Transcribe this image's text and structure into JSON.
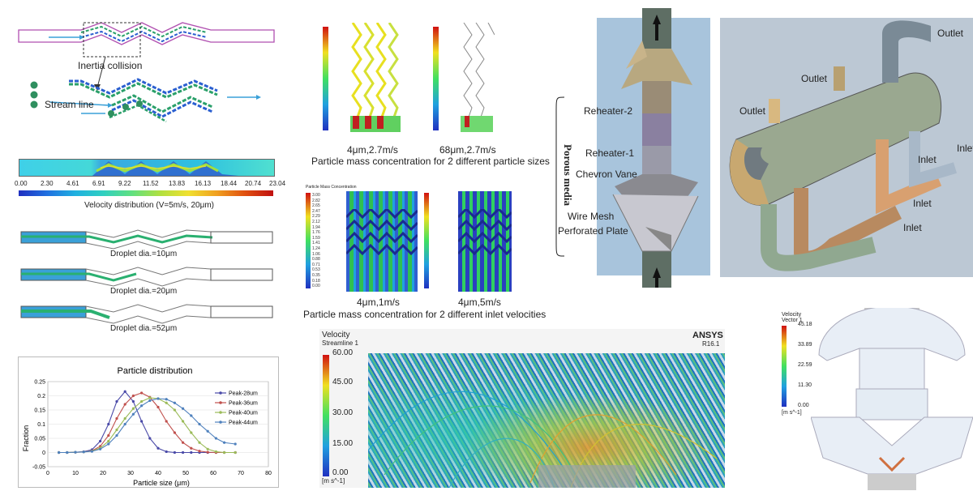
{
  "panel_a": {
    "inertia_label": "Inertia collision",
    "stream_label": "Stream line",
    "velocity_caption": "Velocity distribution (V=5m/s, 20μm)",
    "velocity_ticks": [
      "0.00",
      "2.30",
      "4.61",
      "6.91",
      "9.22",
      "11.52",
      "13.83",
      "16.13",
      "18.44",
      "20.74",
      "23.04"
    ],
    "droplet_captions": [
      "Droplet dia.=10μm",
      "Droplet dia.=20μm",
      "Droplet dia.=52μm"
    ]
  },
  "chart_data": {
    "type": "line",
    "title": "Particle distribution",
    "xlabel": "Particle size (μm)",
    "ylabel": "Fraction",
    "xlim": [
      0,
      80
    ],
    "ylim": [
      -0.05,
      0.25
    ],
    "xticks": [
      0,
      10,
      20,
      30,
      40,
      50,
      60,
      70,
      80
    ],
    "yticks": [
      -0.05,
      0,
      0.05,
      0.1,
      0.15,
      0.2,
      0.25
    ],
    "legend_position": "top-right",
    "x": [
      4,
      7,
      10,
      13,
      16,
      19,
      22,
      25,
      28,
      31,
      34,
      37,
      40,
      43,
      46,
      49,
      52,
      55,
      58,
      61,
      64,
      68
    ],
    "series": [
      {
        "name": "Peak-28um",
        "color": "#4a4aa8",
        "values": [
          0,
          0,
          0.001,
          0.003,
          0.01,
          0.04,
          0.1,
          0.18,
          0.215,
          0.18,
          0.11,
          0.05,
          0.015,
          0.003,
          0,
          0,
          0,
          0,
          0,
          0,
          0,
          0
        ]
      },
      {
        "name": "Peak-36um",
        "color": "#c0504d",
        "values": [
          0,
          0,
          0.001,
          0.002,
          0.006,
          0.022,
          0.06,
          0.12,
          0.17,
          0.2,
          0.21,
          0.195,
          0.16,
          0.11,
          0.07,
          0.035,
          0.015,
          0.005,
          0.001,
          0,
          0,
          0
        ]
      },
      {
        "name": "Peak-40um",
        "color": "#9bbb59",
        "values": [
          0,
          0,
          0.001,
          0.002,
          0.005,
          0.016,
          0.04,
          0.08,
          0.12,
          0.155,
          0.18,
          0.193,
          0.19,
          0.175,
          0.15,
          0.11,
          0.07,
          0.035,
          0.012,
          0.003,
          0,
          0
        ]
      },
      {
        "name": "Peak-44um",
        "color": "#4f81bd",
        "values": [
          0,
          0,
          0.001,
          0.002,
          0.004,
          0.012,
          0.03,
          0.06,
          0.1,
          0.135,
          0.165,
          0.183,
          0.19,
          0.188,
          0.175,
          0.155,
          0.13,
          0.1,
          0.075,
          0.05,
          0.035,
          0.03
        ]
      }
    ]
  },
  "panel_b": {
    "top_caption_labels": [
      "4μm,2.7m/s",
      "68μm,2.7m/s"
    ],
    "top_caption": "Particle mass concentration for 2 different particle sizes",
    "colorbar_title": "Particle Mass Concentration",
    "colorbar_ticks": [
      "3.00",
      "2.82",
      "2.65",
      "2.47",
      "2.29",
      "2.12",
      "1.94",
      "1.76",
      "1.59",
      "1.41",
      "1.24",
      "1.06",
      "0.88",
      "0.71",
      "0.53",
      "0.35",
      "0.18",
      "0.00"
    ],
    "bottom_caption_labels": [
      "4μm,1m/s",
      "4μm,5m/s"
    ],
    "bottom_caption": "Particle mass concentration for 2 different inlet velocities"
  },
  "panel_c": {
    "title": "Velocity",
    "subtitle": "Streamline 1",
    "brand": "ANSYS",
    "version": "R16.1",
    "ticks": [
      "60.00",
      "45.00",
      "30.00",
      "15.00",
      "0.00"
    ],
    "unit": "[m s^-1]"
  },
  "panel_d": {
    "vertical_label": "Porous media",
    "labels": [
      "Reheater-2",
      "Reheater-1",
      "Chevron Vane",
      "Wire Mesh",
      "Perforated Plate"
    ]
  },
  "panel_e": {
    "outlets": [
      "Outlet",
      "Outlet",
      "Outlet"
    ],
    "inlets": [
      "Inlet",
      "Inlet",
      "Inlet",
      "Inlet"
    ]
  },
  "panel_f": {
    "title": "Velocity",
    "subtitle": "Vector 1",
    "ticks": [
      "45.18",
      "33.89",
      "22.59",
      "11.30",
      "0.00"
    ],
    "unit": "[m s^-1]"
  },
  "colors": {
    "accent_blue": "#3aa0d8",
    "pipe_purple": "#b04fb0",
    "dot_green": "#2f8f5f"
  }
}
